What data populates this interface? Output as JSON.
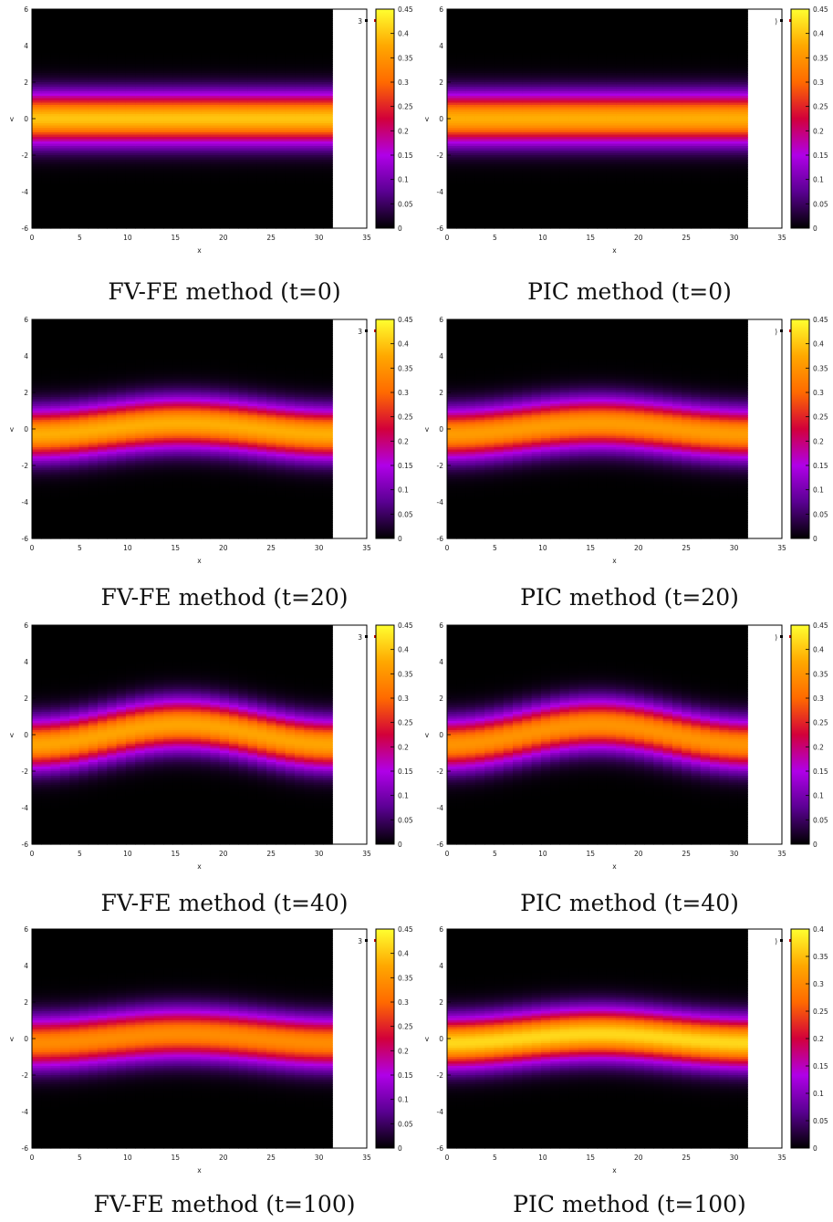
{
  "chart_data": [
    {
      "type": "heatmap",
      "caption": "FV-FE method (t=0)",
      "xlabel": "x",
      "ylabel": "v",
      "xlim": [
        0,
        35
      ],
      "ylim": [
        -6,
        6
      ],
      "data_x_extent": [
        0,
        31.4
      ],
      "x_ticks": [
        0,
        5,
        10,
        15,
        20,
        25,
        30,
        35
      ],
      "y_ticks": [
        -6,
        -4,
        -2,
        0,
        2,
        4,
        6
      ],
      "colorbar": {
        "min": 0,
        "max": 0.45,
        "ticks": [
          "0",
          "0.05",
          "0.1",
          "0.15",
          "0.2",
          "0.25",
          "0.3",
          "0.35",
          "0.4",
          "0.45"
        ]
      },
      "peak_value": 0.4,
      "perturbation_amplitude": 0.0,
      "legend_fragment": "3"
    },
    {
      "type": "heatmap",
      "caption": "PIC method (t=0)",
      "xlabel": "x",
      "ylabel": "v",
      "xlim": [
        0,
        35
      ],
      "ylim": [
        -6,
        6
      ],
      "data_x_extent": [
        0,
        31.4
      ],
      "x_ticks": [
        0,
        5,
        10,
        15,
        20,
        25,
        30,
        35
      ],
      "y_ticks": [
        -6,
        -4,
        -2,
        0,
        2,
        4,
        6
      ],
      "colorbar": {
        "min": 0,
        "max": 0.45,
        "ticks": [
          "0",
          "0.05",
          "0.1",
          "0.15",
          "0.2",
          "0.25",
          "0.3",
          "0.35",
          "0.4",
          "0.45"
        ]
      },
      "peak_value": 0.38,
      "perturbation_amplitude": 0.0,
      "legend_fragment": ")"
    },
    {
      "type": "heatmap",
      "caption": "FV-FE method (t=20)",
      "xlabel": "x",
      "ylabel": "v",
      "xlim": [
        0,
        35
      ],
      "ylim": [
        -6,
        6
      ],
      "data_x_extent": [
        0,
        31.4
      ],
      "x_ticks": [
        0,
        5,
        10,
        15,
        20,
        25,
        30,
        35
      ],
      "y_ticks": [
        -6,
        -4,
        -2,
        0,
        2,
        4,
        6
      ],
      "colorbar": {
        "min": 0,
        "max": 0.45,
        "ticks": [
          "0",
          "0.05",
          "0.1",
          "0.15",
          "0.2",
          "0.25",
          "0.3",
          "0.35",
          "0.4",
          "0.45"
        ]
      },
      "peak_value": 0.38,
      "perturbation_amplitude": 0.3,
      "legend_fragment": "3"
    },
    {
      "type": "heatmap",
      "caption": "PIC method (t=20)",
      "xlabel": "x",
      "ylabel": "v",
      "xlim": [
        0,
        35
      ],
      "ylim": [
        -6,
        6
      ],
      "data_x_extent": [
        0,
        31.4
      ],
      "x_ticks": [
        0,
        5,
        10,
        15,
        20,
        25,
        30,
        35
      ],
      "y_ticks": [
        -6,
        -4,
        -2,
        0,
        2,
        4,
        6
      ],
      "colorbar": {
        "min": 0,
        "max": 0.45,
        "ticks": [
          "0",
          "0.05",
          "0.1",
          "0.15",
          "0.2",
          "0.25",
          "0.3",
          "0.35",
          "0.4",
          "0.45"
        ]
      },
      "peak_value": 0.36,
      "perturbation_amplitude": 0.3,
      "legend_fragment": ")"
    },
    {
      "type": "heatmap",
      "caption": "FV-FE method (t=40)",
      "xlabel": "x",
      "ylabel": "v",
      "xlim": [
        0,
        35
      ],
      "ylim": [
        -6,
        6
      ],
      "data_x_extent": [
        0,
        31.4
      ],
      "x_ticks": [
        0,
        5,
        10,
        15,
        20,
        25,
        30,
        35
      ],
      "y_ticks": [
        -6,
        -4,
        -2,
        0,
        2,
        4,
        6
      ],
      "colorbar": {
        "min": 0,
        "max": 0.45,
        "ticks": [
          "0",
          "0.05",
          "0.1",
          "0.15",
          "0.2",
          "0.25",
          "0.3",
          "0.35",
          "0.4",
          "0.45"
        ]
      },
      "peak_value": 0.37,
      "perturbation_amplitude": 0.55,
      "legend_fragment": "3"
    },
    {
      "type": "heatmap",
      "caption": "PIC method (t=40)",
      "xlabel": "x",
      "ylabel": "v",
      "xlim": [
        0,
        35
      ],
      "ylim": [
        -6,
        6
      ],
      "data_x_extent": [
        0,
        31.4
      ],
      "x_ticks": [
        0,
        5,
        10,
        15,
        20,
        25,
        30,
        35
      ],
      "y_ticks": [
        -6,
        -4,
        -2,
        0,
        2,
        4,
        6
      ],
      "colorbar": {
        "min": 0,
        "max": 0.45,
        "ticks": [
          "0",
          "0.05",
          "0.1",
          "0.15",
          "0.2",
          "0.25",
          "0.3",
          "0.35",
          "0.4",
          "0.45"
        ]
      },
      "peak_value": 0.35,
      "perturbation_amplitude": 0.55,
      "legend_fragment": ")"
    },
    {
      "type": "heatmap",
      "caption": "FV-FE method (t=100)",
      "xlabel": "x",
      "ylabel": "v",
      "xlim": [
        0,
        35
      ],
      "ylim": [
        -6,
        6
      ],
      "data_x_extent": [
        0,
        31.4
      ],
      "x_ticks": [
        0,
        5,
        10,
        15,
        20,
        25,
        30,
        35
      ],
      "y_ticks": [
        -6,
        -4,
        -2,
        0,
        2,
        4,
        6
      ],
      "colorbar": {
        "min": 0,
        "max": 0.45,
        "ticks": [
          "0",
          "0.05",
          "0.1",
          "0.15",
          "0.2",
          "0.25",
          "0.3",
          "0.35",
          "0.4",
          "0.45"
        ]
      },
      "peak_value": 0.34,
      "perturbation_amplitude": 0.25,
      "legend_fragment": "3"
    },
    {
      "type": "heatmap",
      "caption": "PIC method (t=100)",
      "xlabel": "x",
      "ylabel": "v",
      "xlim": [
        0,
        35
      ],
      "ylim": [
        -6,
        6
      ],
      "data_x_extent": [
        0,
        31.4
      ],
      "x_ticks": [
        0,
        5,
        10,
        15,
        20,
        25,
        30,
        35
      ],
      "y_ticks": [
        -6,
        -4,
        -2,
        0,
        2,
        4,
        6
      ],
      "colorbar": {
        "min": 0,
        "max": 0.4,
        "ticks": [
          "0",
          "0.05",
          "0.1",
          "0.15",
          "0.2",
          "0.25",
          "0.3",
          "0.35",
          "0.4"
        ]
      },
      "peak_value": 0.37,
      "perturbation_amplitude": 0.25,
      "legend_fragment": ")"
    }
  ],
  "palette": {
    "colormap_stops": [
      "#000000",
      "#5a0092",
      "#b000e8",
      "#d2003a",
      "#ff6a00",
      "#ffa800",
      "#ffff30"
    ],
    "legend_dots": [
      "#000000",
      "#cc0000",
      "#ffaa00"
    ]
  }
}
